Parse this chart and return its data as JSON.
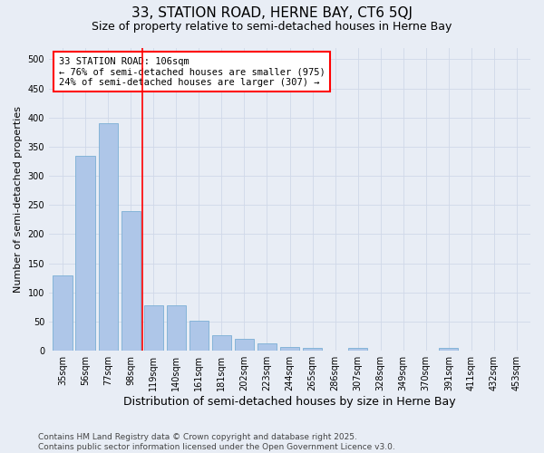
{
  "title": "33, STATION ROAD, HERNE BAY, CT6 5QJ",
  "subtitle": "Size of property relative to semi-detached houses in Herne Bay",
  "xlabel": "Distribution of semi-detached houses by size in Herne Bay",
  "ylabel": "Number of semi-detached properties",
  "categories": [
    "35sqm",
    "56sqm",
    "77sqm",
    "98sqm",
    "119sqm",
    "140sqm",
    "161sqm",
    "181sqm",
    "202sqm",
    "223sqm",
    "244sqm",
    "265sqm",
    "286sqm",
    "307sqm",
    "328sqm",
    "349sqm",
    "370sqm",
    "391sqm",
    "411sqm",
    "432sqm",
    "453sqm"
  ],
  "values": [
    130,
    335,
    390,
    240,
    78,
    78,
    52,
    27,
    20,
    13,
    7,
    5,
    0,
    5,
    0,
    0,
    0,
    5,
    0,
    0,
    0
  ],
  "bar_color": "#aec6e8",
  "bar_edgecolor": "#7aafd4",
  "vline_x": 3.5,
  "vline_color": "red",
  "annotation_text": "33 STATION ROAD: 106sqm\n← 76% of semi-detached houses are smaller (975)\n24% of semi-detached houses are larger (307) →",
  "annotation_box_color": "white",
  "annotation_box_edgecolor": "red",
  "ylim": [
    0,
    520
  ],
  "yticks": [
    0,
    50,
    100,
    150,
    200,
    250,
    300,
    350,
    400,
    450,
    500
  ],
  "grid_color": "#d0d8e8",
  "background_color": "#e8edf5",
  "footnote": "Contains HM Land Registry data © Crown copyright and database right 2025.\nContains public sector information licensed under the Open Government Licence v3.0.",
  "title_fontsize": 11,
  "subtitle_fontsize": 9,
  "xlabel_fontsize": 9,
  "ylabel_fontsize": 8,
  "tick_fontsize": 7,
  "annotation_fontsize": 7.5,
  "footnote_fontsize": 6.5
}
